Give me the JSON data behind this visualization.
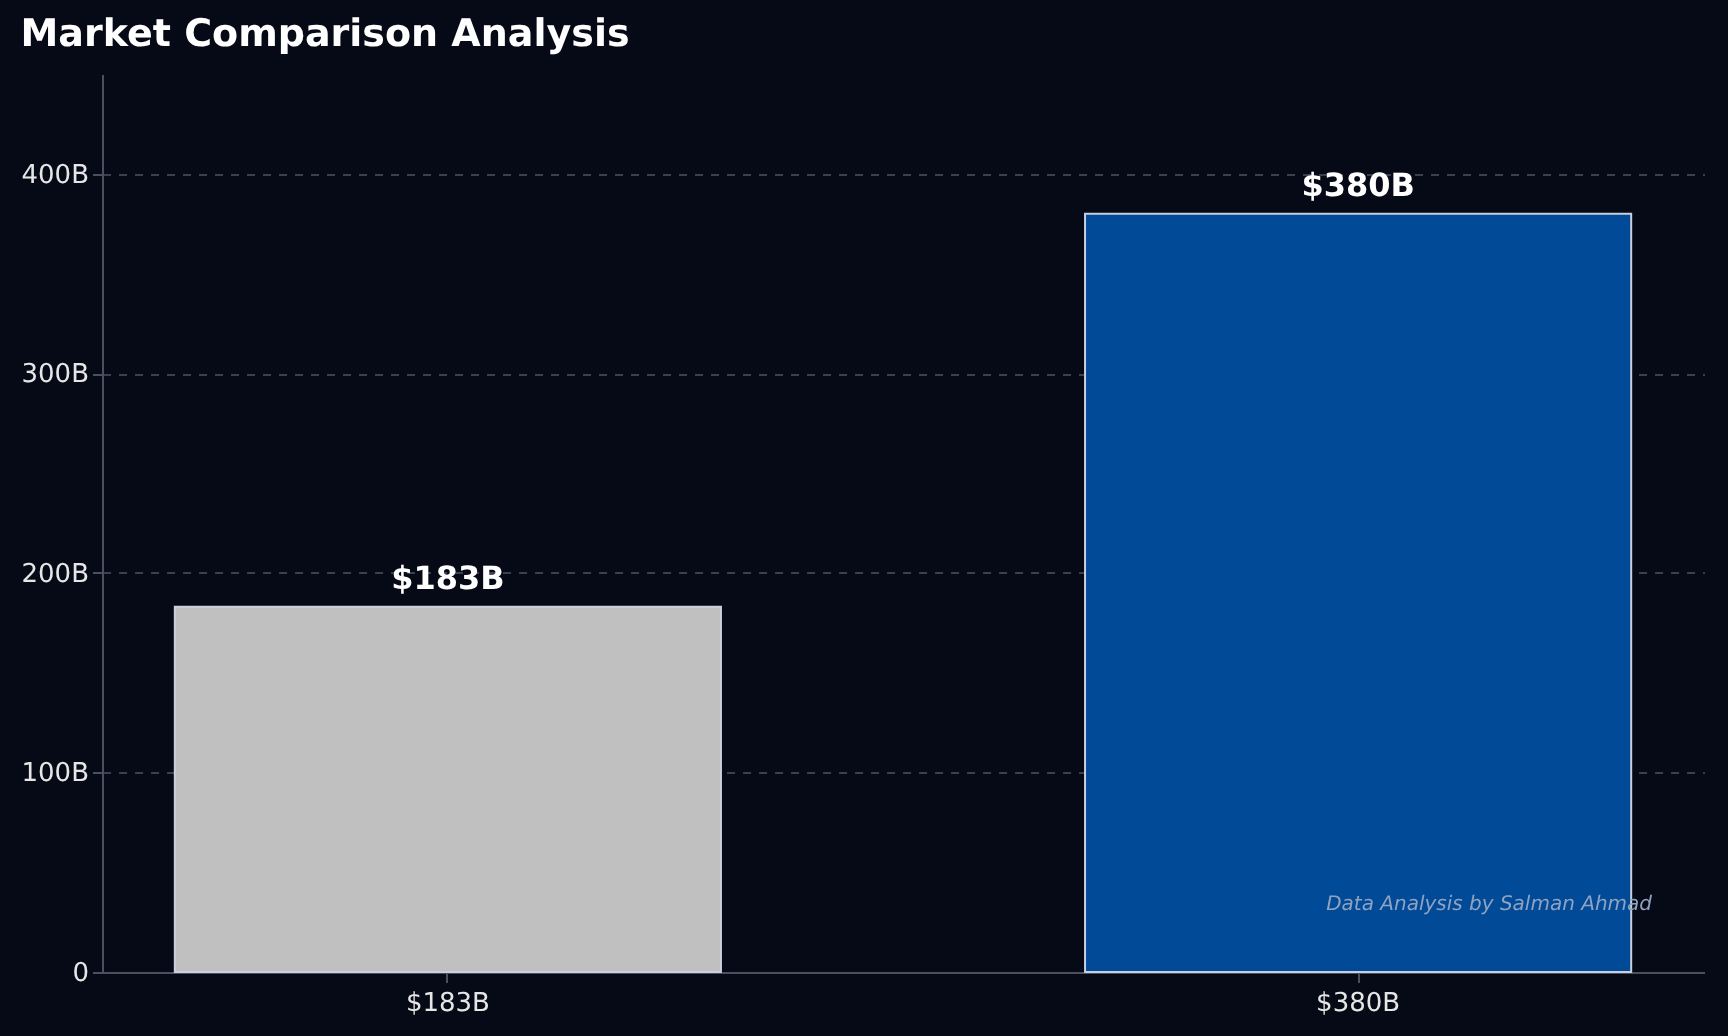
{
  "chart_data": {
    "type": "bar",
    "title": "Market Comparison Analysis",
    "categories": [
      "$183B",
      "$380B"
    ],
    "values": [
      183,
      380
    ],
    "colors": [
      "#c0c0c0",
      "#004a98"
    ],
    "value_labels": [
      "$183B",
      "$380B"
    ],
    "ylim": [
      0,
      450
    ],
    "yticks": [
      0,
      {
        "value": 100,
        "label": "100B"
      },
      {
        "value": 200,
        "label": "200B"
      },
      {
        "value": 300,
        "label": "300B"
      },
      {
        "value": 400,
        "label": "400B"
      }
    ],
    "grid": "y",
    "annotations": [
      "Data Analysis by Salman Ahmad"
    ]
  }
}
